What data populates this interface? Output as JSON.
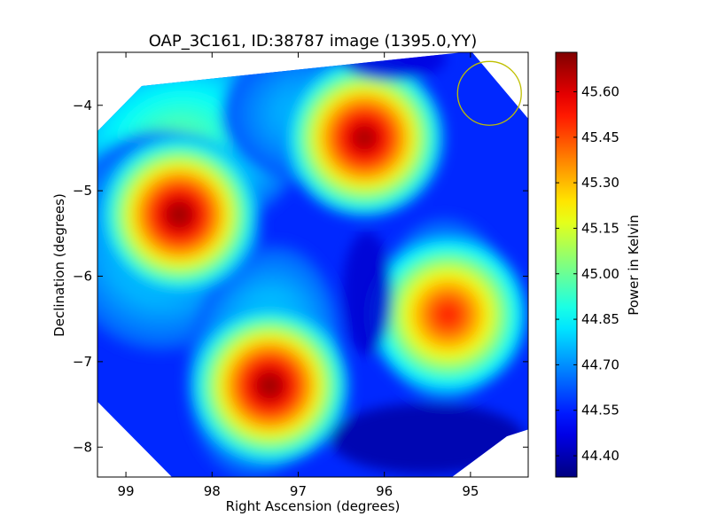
{
  "chart_data": {
    "type": "heatmap",
    "title": "OAP_3C161, ID:38787 image (1395.0,YY)",
    "xlabel": "Right Ascension (degrees)",
    "ylabel": "Declination (degrees)",
    "colorbar_label": "Power in Kelvin",
    "colormap": "jet",
    "x_direction": "decreasing",
    "xlim": [
      99.33,
      94.33
    ],
    "ylim": [
      -8.35,
      -3.38
    ],
    "x_ticks": [
      99,
      98,
      97,
      96,
      95
    ],
    "x_tick_labels": [
      "99",
      "98",
      "97",
      "96",
      "95"
    ],
    "y_ticks": [
      -4,
      -5,
      -6,
      -7,
      -8
    ],
    "y_tick_labels": [
      "−4",
      "−5",
      "−6",
      "−7",
      "−8"
    ],
    "color_range": [
      44.33,
      45.73
    ],
    "colorbar_ticks": [
      44.4,
      44.55,
      44.7,
      44.85,
      45.0,
      45.15,
      45.3,
      45.45,
      45.6
    ],
    "colorbar_tick_labels": [
      "44.40",
      "44.55",
      "44.70",
      "44.85",
      "45.00",
      "45.15",
      "45.30",
      "45.45",
      "45.60"
    ],
    "background_level": 44.56,
    "sources": [
      {
        "ra": 98.38,
        "dec": -5.28,
        "peak": 45.72
      },
      {
        "ra": 97.33,
        "dec": -7.28,
        "peak": 45.72
      },
      {
        "ra": 96.23,
        "dec": -4.38,
        "peak": 45.7
      },
      {
        "ra": 95.26,
        "dec": -6.45,
        "peak": 45.53
      }
    ],
    "beam_circle": {
      "ra": 94.78,
      "dec": -3.86,
      "radius_deg": 0.37,
      "color": "#bfbf00"
    }
  }
}
